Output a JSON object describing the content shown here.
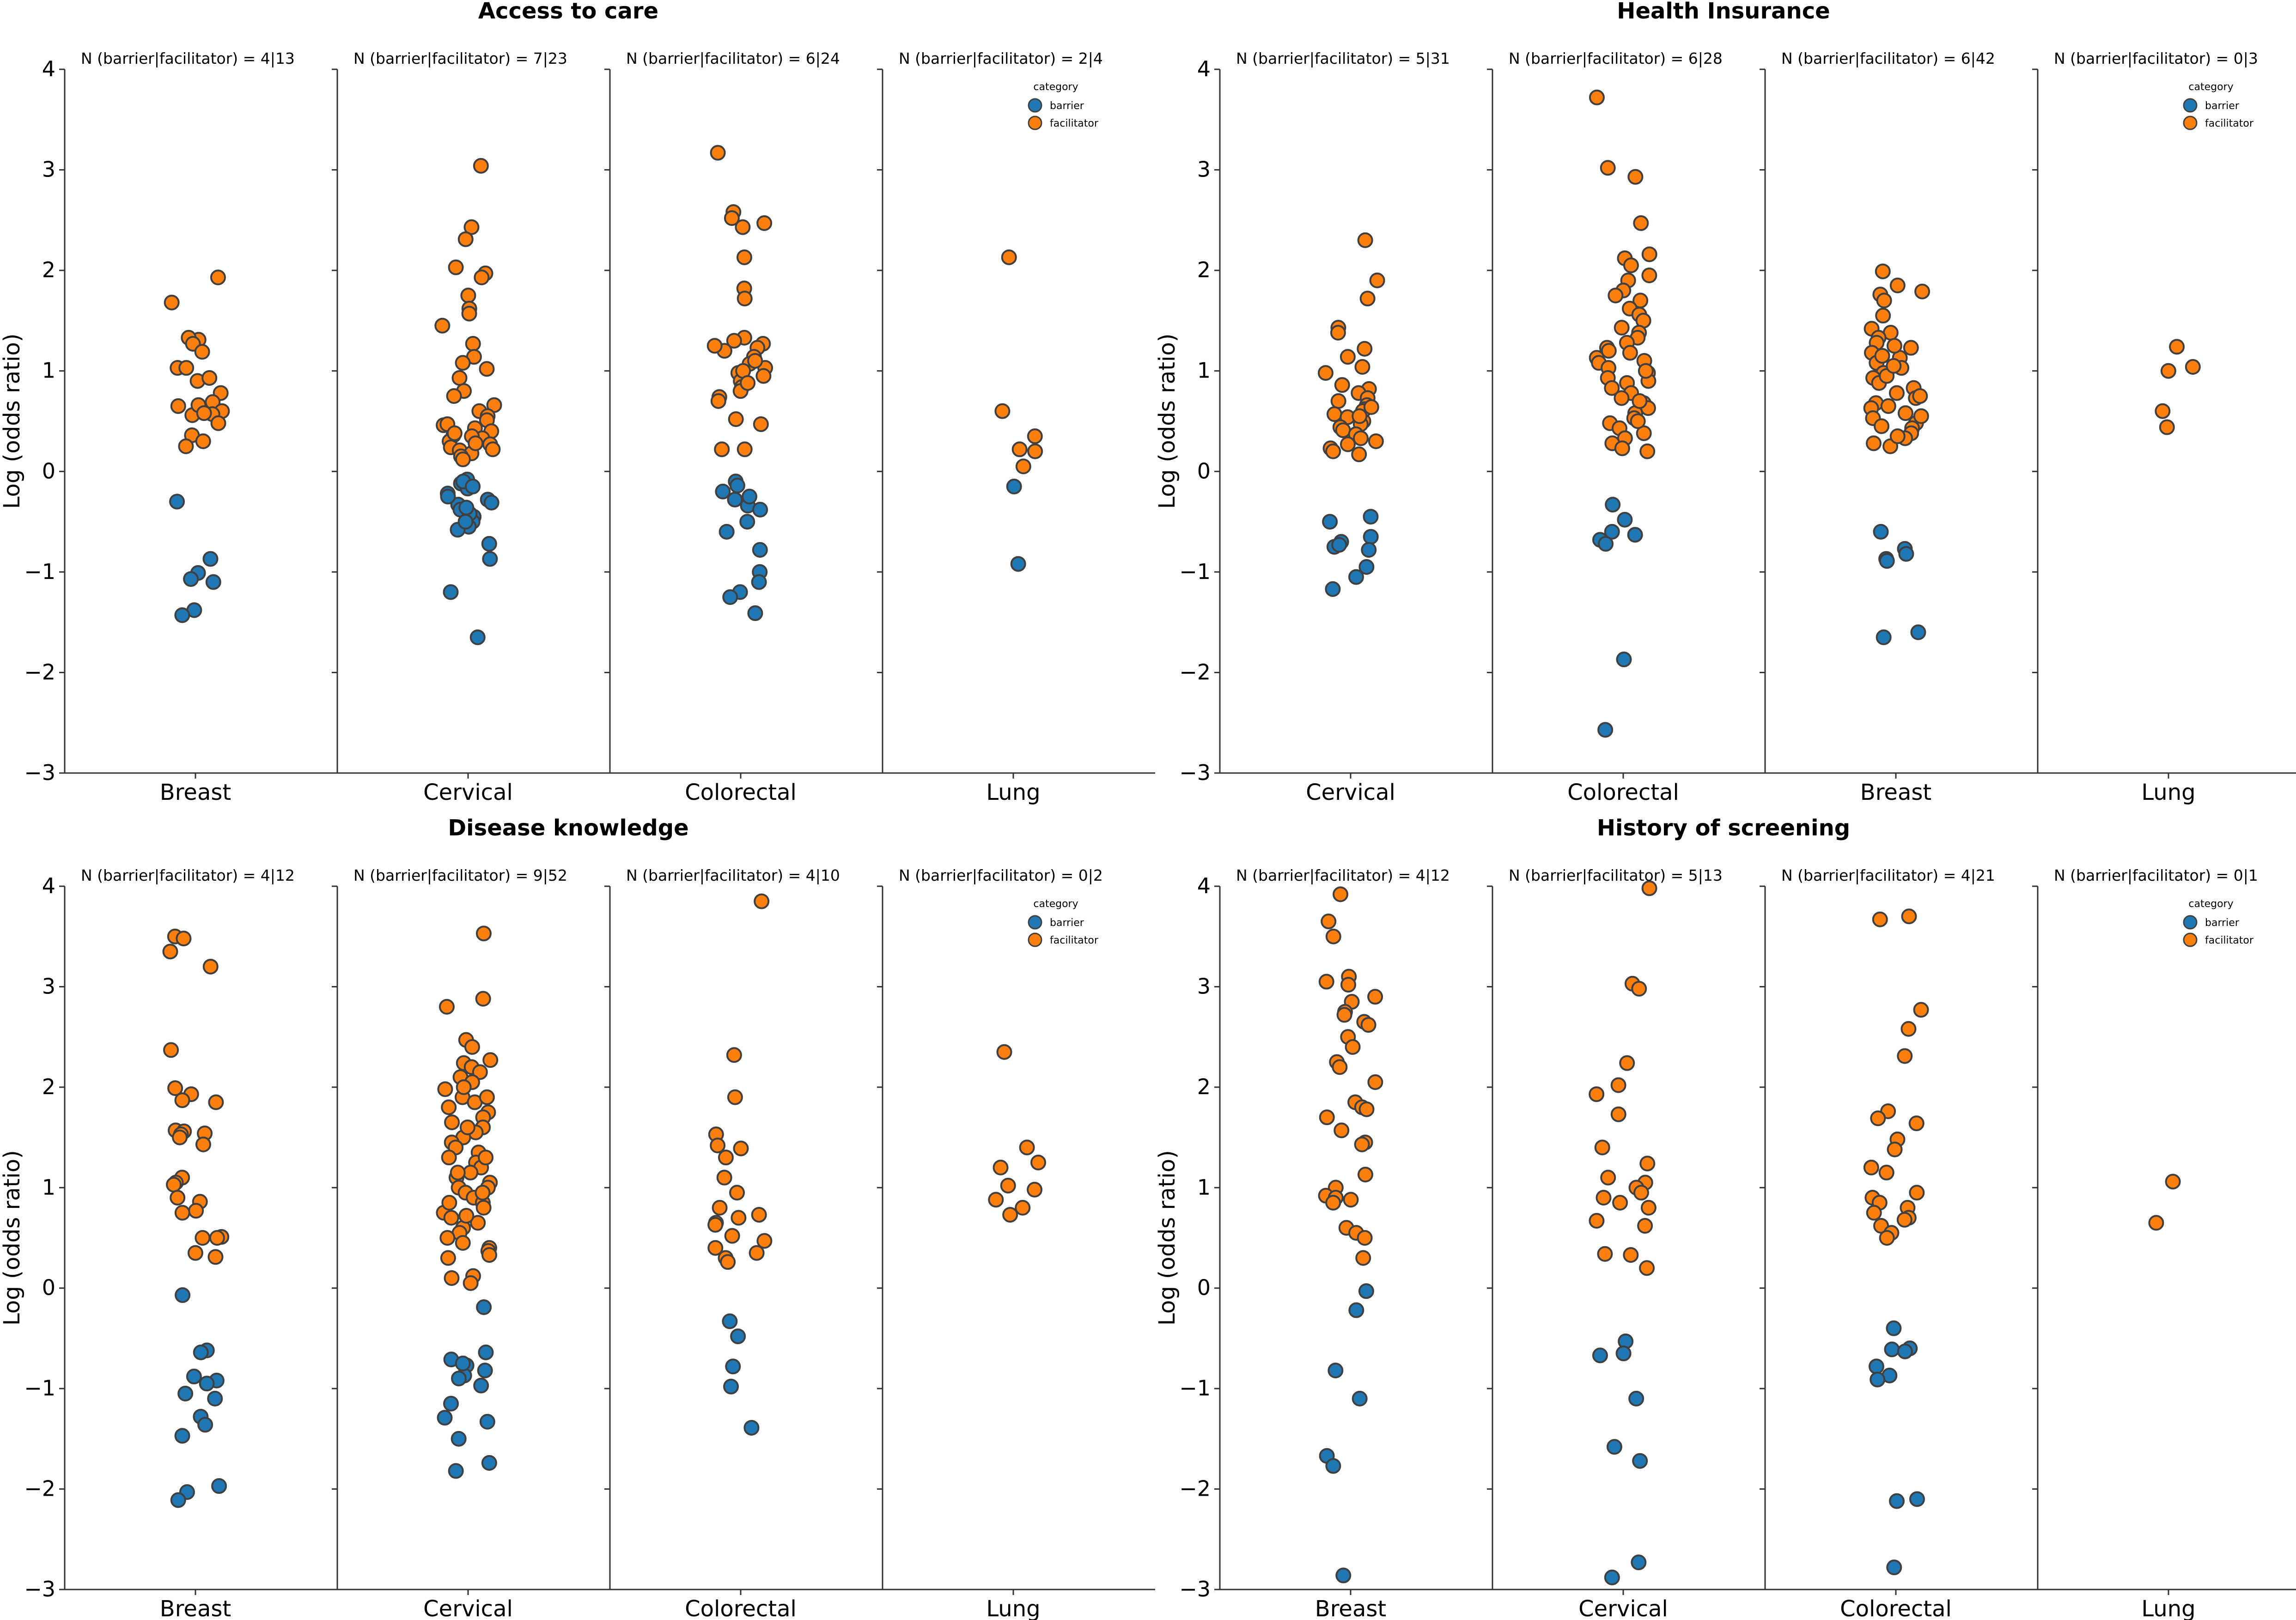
{
  "colors": {
    "barrier": "#1f77b4",
    "facilitator": "#ff7f0e",
    "edge": "#404040"
  },
  "chart_data": [
    {
      "type": "scatter",
      "title": "Access to care",
      "ylabel": "Log (odds ratio)",
      "ylim": [
        -3,
        4
      ],
      "yticks": [
        "−3",
        "−2",
        "−1",
        "0",
        "1",
        "2",
        "3",
        "4"
      ],
      "legend": {
        "title": "category",
        "entries": [
          "barrier",
          "facilitator"
        ]
      },
      "panels": [
        {
          "category": "Breast",
          "annotation": "N (barrier|facilitator) = 4|13",
          "facilitator": [
            1.93,
            1.68,
            1.31,
            1.33,
            1.27,
            1.19,
            1.03,
            1.03,
            0.9,
            0.78,
            0.69,
            0.65,
            0.6,
            0.57,
            0.56,
            0.48,
            0.36,
            0.3,
            0.25,
            0.93,
            0.66,
            0.58
          ],
          "barrier": [
            -0.3,
            -0.87,
            -1.01,
            -1.07,
            -1.1,
            -1.38,
            -1.43
          ]
        },
        {
          "category": "Cervical",
          "annotation": "N (barrier|facilitator) = 7|23",
          "facilitator": [
            3.04,
            2.43,
            2.31,
            2.03,
            1.97,
            1.93,
            1.75,
            1.62,
            1.57,
            1.45,
            1.27,
            1.14,
            1.08,
            1.02,
            0.93,
            0.8,
            0.75,
            0.66,
            0.6,
            0.55,
            0.51,
            0.46,
            0.43,
            0.4,
            0.36,
            0.33,
            0.3,
            0.27,
            0.24,
            0.21,
            0.18,
            0.15,
            0.12,
            0.35,
            0.47,
            0.28,
            0.22,
            0.38
          ],
          "barrier": [
            -0.08,
            -0.12,
            -0.17,
            -0.22,
            -0.28,
            -0.33,
            -0.38,
            -0.45,
            -0.5,
            -0.55,
            -0.58,
            -0.72,
            -0.87,
            -1.2,
            -1.65,
            -0.25,
            -0.31,
            -0.42,
            -0.1,
            -0.15,
            -0.5,
            -0.36
          ]
        },
        {
          "category": "Colorectal",
          "annotation": "N (barrier|facilitator) = 6|24",
          "facilitator": [
            3.17,
            2.58,
            2.52,
            2.47,
            2.43,
            2.13,
            1.82,
            1.72,
            1.33,
            1.3,
            1.27,
            1.23,
            1.2,
            1.14,
            1.07,
            1.03,
            0.98,
            0.95,
            0.9,
            0.84,
            0.8,
            0.74,
            0.7,
            0.52,
            0.47,
            0.22,
            0.22,
            1.0,
            1.1,
            1.25,
            0.88
          ],
          "barrier": [
            -0.1,
            -0.14,
            -0.2,
            -0.28,
            -0.34,
            -0.38,
            -0.5,
            -0.6,
            -0.78,
            -1.0,
            -1.1,
            -1.2,
            -1.25,
            -1.41,
            -0.25
          ]
        },
        {
          "category": "Lung",
          "annotation": "N (barrier|facilitator) = 2|4",
          "facilitator": [
            2.13,
            0.6,
            0.35,
            0.22,
            0.2,
            0.05
          ],
          "barrier": [
            -0.15,
            -0.92
          ]
        }
      ]
    },
    {
      "type": "scatter",
      "title": "Health Insurance",
      "ylabel": "Log (odds ratio)",
      "ylim": [
        -3,
        4
      ],
      "yticks": [
        "−3",
        "−2",
        "−1",
        "0",
        "1",
        "2",
        "3",
        "4"
      ],
      "legend": {
        "title": "category",
        "entries": [
          "barrier",
          "facilitator"
        ]
      },
      "panels": [
        {
          "category": "Cervical",
          "annotation": "N (barrier|facilitator) = 5|31",
          "facilitator": [
            2.3,
            1.9,
            1.72,
            1.43,
            1.38,
            1.22,
            1.14,
            1.04,
            0.98,
            0.86,
            0.82,
            0.78,
            0.73,
            0.7,
            0.66,
            0.62,
            0.6,
            0.57,
            0.54,
            0.5,
            0.47,
            0.44,
            0.41,
            0.37,
            0.33,
            0.3,
            0.27,
            0.23,
            0.2,
            0.17,
            0.64,
            0.55
          ],
          "barrier": [
            -0.45,
            -0.5,
            -0.65,
            -0.7,
            -0.75,
            -0.78,
            -0.95,
            -1.05,
            -1.17,
            -0.73
          ]
        },
        {
          "category": "Colorectal",
          "annotation": "N (barrier|facilitator) = 6|28",
          "facilitator": [
            3.72,
            3.02,
            2.93,
            2.47,
            2.16,
            2.12,
            2.05,
            1.95,
            1.9,
            1.8,
            1.75,
            1.7,
            1.62,
            1.56,
            1.5,
            1.43,
            1.38,
            1.33,
            1.28,
            1.23,
            1.18,
            1.13,
            1.08,
            1.03,
            0.98,
            0.93,
            0.88,
            0.83,
            0.78,
            0.73,
            0.68,
            0.63,
            0.58,
            0.53,
            0.48,
            0.43,
            0.38,
            0.33,
            0.28,
            0.23,
            0.2,
            1.1,
            0.9,
            0.7,
            0.5,
            1.0,
            1.2
          ],
          "barrier": [
            -0.33,
            -0.48,
            -0.6,
            -0.63,
            -0.68,
            -0.72,
            -1.87,
            -2.57
          ]
        },
        {
          "category": "Breast",
          "annotation": "N (barrier|facilitator) = 6|42",
          "facilitator": [
            1.99,
            1.85,
            1.79,
            1.76,
            1.7,
            1.55,
            1.42,
            1.38,
            1.33,
            1.28,
            1.23,
            1.18,
            1.13,
            1.08,
            1.03,
            0.98,
            0.93,
            0.88,
            0.83,
            0.78,
            0.73,
            0.68,
            0.63,
            0.58,
            0.53,
            0.48,
            0.43,
            0.38,
            0.33,
            0.28,
            0.25,
            1.15,
            0.95,
            0.75,
            0.55,
            0.35,
            1.05,
            0.65,
            0.45,
            1.25
          ],
          "barrier": [
            -0.6,
            -0.77,
            -0.82,
            -0.87,
            -0.89,
            -1.6,
            -1.65
          ]
        },
        {
          "category": "Lung",
          "annotation": "N (barrier|facilitator) = 0|3",
          "facilitator": [
            1.24,
            1.04,
            1.0,
            0.6,
            0.44
          ],
          "barrier": []
        }
      ]
    },
    {
      "type": "scatter",
      "title": "Disease knowledge",
      "ylabel": "Log (odds ratio)",
      "ylim": [
        -3,
        4
      ],
      "yticks": [
        "−3",
        "−2",
        "−1",
        "0",
        "1",
        "2",
        "3",
        "4"
      ],
      "legend": {
        "title": "category",
        "entries": [
          "barrier",
          "facilitator"
        ]
      },
      "panels": [
        {
          "category": "Breast",
          "annotation": "N (barrier|facilitator) = 4|12",
          "facilitator": [
            3.5,
            3.48,
            3.35,
            3.2,
            2.37,
            1.99,
            1.93,
            1.87,
            1.85,
            1.57,
            1.56,
            1.54,
            1.53,
            1.5,
            1.43,
            1.1,
            1.05,
            1.03,
            0.9,
            0.86,
            0.77,
            0.75,
            0.51,
            0.5,
            0.5,
            0.35,
            0.31
          ],
          "barrier": [
            -0.07,
            -0.62,
            -0.64,
            -0.88,
            -0.92,
            -0.95,
            -1.05,
            -1.28,
            -1.36,
            -1.47,
            -1.97,
            -2.03,
            -2.11,
            -1.1
          ]
        },
        {
          "category": "Cervical",
          "annotation": "N (barrier|facilitator) = 9|52",
          "facilitator": [
            3.53,
            2.88,
            2.8,
            2.47,
            2.4,
            2.27,
            2.24,
            2.2,
            2.15,
            2.1,
            2.05,
            1.98,
            1.9,
            1.85,
            1.8,
            1.75,
            1.7,
            1.65,
            1.6,
            1.55,
            1.5,
            1.45,
            1.4,
            1.35,
            1.3,
            1.25,
            1.2,
            1.15,
            1.1,
            1.05,
            1.0,
            0.95,
            0.9,
            0.85,
            0.8,
            0.75,
            0.7,
            0.65,
            0.6,
            0.55,
            0.5,
            0.45,
            0.4,
            0.37,
            0.33,
            0.3,
            0.12,
            0.1,
            0.05,
            1.6,
            1.3,
            1.0,
            0.85,
            0.72,
            1.9,
            2.0,
            1.15,
            0.95
          ],
          "barrier": [
            -0.19,
            -0.64,
            -0.71,
            -0.77,
            -0.82,
            -0.87,
            -0.9,
            -0.97,
            -1.15,
            -1.29,
            -1.33,
            -1.5,
            -1.74,
            -1.82,
            -0.75
          ]
        },
        {
          "category": "Colorectal",
          "annotation": "N (barrier|facilitator) = 4|10",
          "facilitator": [
            3.85,
            2.32,
            1.9,
            1.53,
            1.42,
            1.39,
            1.3,
            1.1,
            0.95,
            0.8,
            0.73,
            0.7,
            0.65,
            0.63,
            0.52,
            0.47,
            0.4,
            0.35,
            0.3,
            0.26
          ],
          "barrier": [
            -0.33,
            -0.48,
            -0.78,
            -0.98,
            -1.39
          ]
        },
        {
          "category": "Lung",
          "annotation": "N (barrier|facilitator) = 0|2",
          "facilitator": [
            2.35,
            1.4,
            1.25,
            1.2,
            1.02,
            0.98,
            0.88,
            0.8,
            0.73
          ],
          "barrier": []
        }
      ]
    },
    {
      "type": "scatter",
      "title": "History of screening",
      "ylabel": "Log (odds ratio)",
      "ylim": [
        -3,
        4
      ],
      "yticks": [
        "−3",
        "−2",
        "−1",
        "0",
        "1",
        "2",
        "3",
        "4"
      ],
      "legend": {
        "title": "category",
        "entries": [
          "barrier",
          "facilitator"
        ]
      },
      "panels": [
        {
          "category": "Breast",
          "annotation": "N (barrier|facilitator) = 4|12",
          "facilitator": [
            3.92,
            3.65,
            3.5,
            3.1,
            3.05,
            3.02,
            2.9,
            2.85,
            2.75,
            2.72,
            2.65,
            2.62,
            2.5,
            2.4,
            2.25,
            2.2,
            2.05,
            1.85,
            1.8,
            1.78,
            1.7,
            1.57,
            1.45,
            1.43,
            1.13,
            1.0,
            0.92,
            0.9,
            0.88,
            0.85,
            0.6,
            0.55,
            0.5,
            0.3
          ],
          "barrier": [
            -0.03,
            -0.22,
            -0.82,
            -1.1,
            -1.67,
            -1.77,
            -2.86
          ]
        },
        {
          "category": "Cervical",
          "annotation": "N (barrier|facilitator) = 5|13",
          "facilitator": [
            3.98,
            3.03,
            2.98,
            2.24,
            2.02,
            1.93,
            1.73,
            1.4,
            1.24,
            1.1,
            1.05,
            1.0,
            0.95,
            0.9,
            0.85,
            0.8,
            0.67,
            0.62,
            0.34,
            0.33,
            0.2
          ],
          "barrier": [
            -0.53,
            -0.65,
            -0.67,
            -1.1,
            -1.58,
            -1.72,
            -2.73,
            -2.88
          ]
        },
        {
          "category": "Colorectal",
          "annotation": "N (barrier|facilitator) = 4|21",
          "facilitator": [
            3.7,
            3.67,
            2.77,
            2.58,
            2.31,
            1.76,
            1.69,
            1.64,
            1.48,
            1.38,
            1.2,
            1.15,
            0.95,
            0.9,
            0.85,
            0.8,
            0.75,
            0.7,
            0.68,
            0.62,
            0.55,
            0.5
          ],
          "barrier": [
            -0.4,
            -0.6,
            -0.61,
            -0.63,
            -0.78,
            -0.87,
            -0.91,
            -2.1,
            -2.12,
            -2.78
          ]
        },
        {
          "category": "Lung",
          "annotation": "N (barrier|facilitator) = 0|1",
          "facilitator": [
            1.06,
            0.65
          ],
          "barrier": []
        }
      ]
    }
  ]
}
